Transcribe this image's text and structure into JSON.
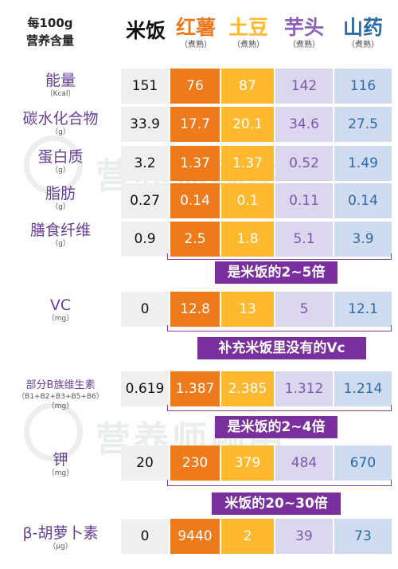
{
  "header": {
    "line1": "每100g",
    "line2": "营养含量"
  },
  "columns": [
    {
      "name": "米饭",
      "sub": "",
      "color": "#111111"
    },
    {
      "name": "红薯",
      "sub": "（煮熟）",
      "color": "#ee7a1b"
    },
    {
      "name": "土豆",
      "sub": "（煮熟）",
      "color": "#ffb92e"
    },
    {
      "name": "芋头",
      "sub": "（煮熟）",
      "color": "#8a63b8"
    },
    {
      "name": "山药",
      "sub": "（煮熟）",
      "color": "#2c6aaa"
    }
  ],
  "rows": [
    {
      "label": "能量",
      "unit": "（Kcal）",
      "values": [
        "151",
        "76",
        "87",
        "142",
        "116"
      ]
    },
    {
      "label": "碳水化合物",
      "unit": "（g）",
      "values": [
        "33.9",
        "17.7",
        "20.1",
        "34.6",
        "27.5"
      ]
    },
    {
      "label": "蛋白质",
      "unit": "（g）",
      "values": [
        "3.2",
        "1.37",
        "1.37",
        "0.52",
        "1.49"
      ]
    },
    {
      "label": "脂肪",
      "unit": "（g）",
      "values": [
        "0.27",
        "0.14",
        "0.1",
        "0.11",
        "0.14"
      ]
    },
    {
      "label": "膳食纤维",
      "unit": "（g）",
      "values": [
        "0.9",
        "2.5",
        "1.8",
        "5.1",
        "3.9"
      ]
    },
    {
      "label": "VC",
      "unit": "（mg）",
      "values": [
        "0",
        "12.8",
        "13",
        "5",
        "12.1"
      ]
    },
    {
      "label": "部分B族维生素",
      "unit": "（B1+B2+B3+B5+B6）",
      "unit2": "（mg）",
      "values": [
        "0.619",
        "1.387",
        "2.385",
        "1.312",
        "1.214"
      ]
    },
    {
      "label": "钾",
      "unit": "（mg）",
      "values": [
        "20",
        "230",
        "379",
        "484",
        "670"
      ]
    },
    {
      "label": "β-胡萝卜素",
      "unit": "（μg）",
      "values": [
        "0",
        "9440",
        "2",
        "39",
        "73"
      ]
    }
  ],
  "notes": [
    "是米饭的2~5倍",
    "补充米饭里没有的Vc",
    "是米饭的2~4倍",
    "米饭的20~30倍"
  ],
  "watermark": "营养师顾中一"
}
